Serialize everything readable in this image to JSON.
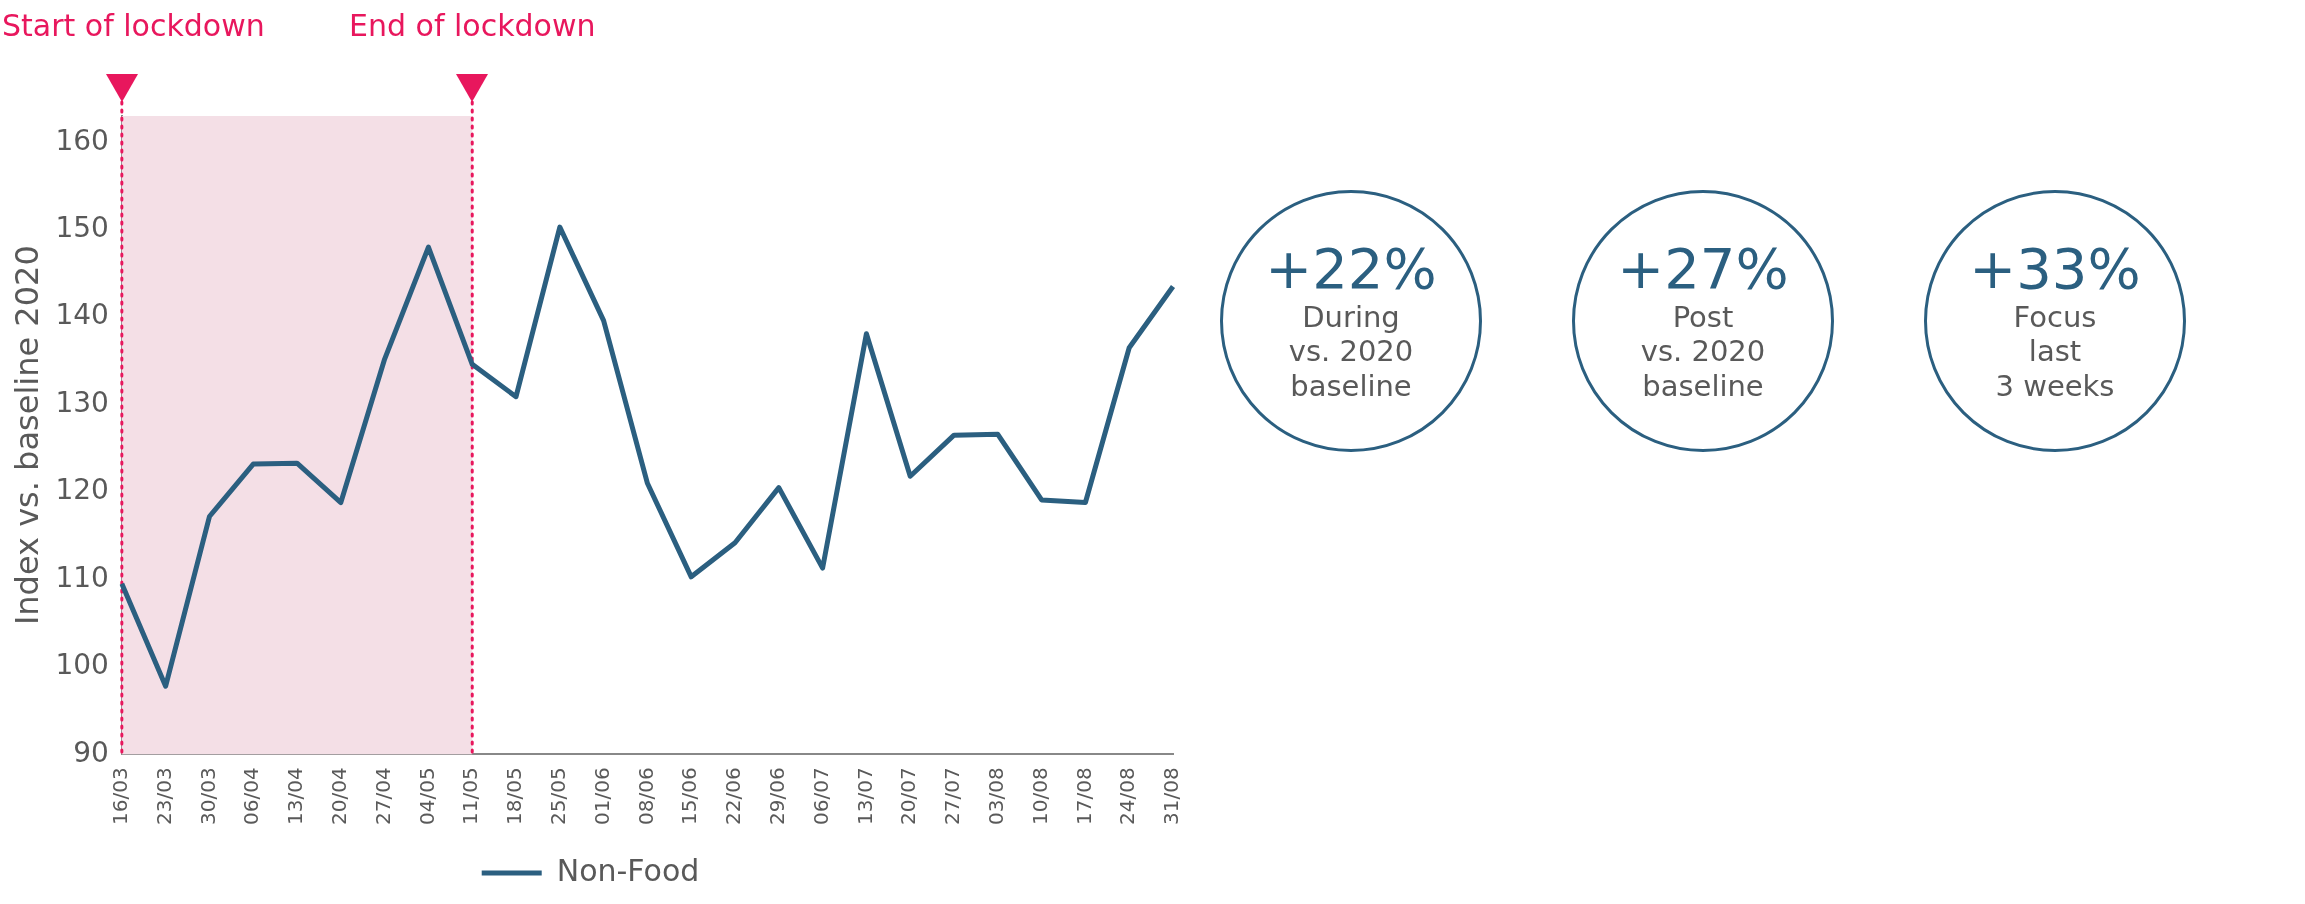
{
  "chart_data": [
    {
      "type": "line",
      "ylabel": "Index vs. baseline 2020",
      "categories": [
        "16/03",
        "23/03",
        "30/03",
        "06/04",
        "13/04",
        "20/04",
        "27/04",
        "04/05",
        "11/05",
        "18/05",
        "25/05",
        "01/06",
        "08/06",
        "15/06",
        "22/06",
        "29/06",
        "06/07",
        "13/07",
        "20/07",
        "27/07",
        "03/08",
        "10/08",
        "17/08",
        "24/08",
        "31/08"
      ],
      "series": [
        {
          "name": "Non-Food",
          "color": "#2b5f80",
          "values": [
            109.5,
            97.8,
            117.2,
            123.2,
            123.3,
            118.8,
            135.2,
            148,
            134.6,
            130.9,
            150.3,
            139.6,
            121,
            110.3,
            114.2,
            120.5,
            111.3,
            138.1,
            121.8,
            126.5,
            126.6,
            119.1,
            118.8,
            136.5,
            143.5
          ]
        }
      ],
      "ylim": [
        90,
        163
      ],
      "yticks": [
        90,
        100,
        110,
        120,
        130,
        140,
        150,
        160
      ],
      "grid": false,
      "legend": "bottom",
      "marker": "none",
      "line_style": "solid",
      "ref_lines": [
        {
          "axis": "x",
          "value": "16/03",
          "label": "Start of lockdown",
          "color": "#e8175d",
          "line_style": "dotted"
        },
        {
          "axis": "x",
          "value": "11/05",
          "label": "End of lockdown",
          "color": "#e8175d",
          "line_style": "dotted"
        }
      ],
      "bands": [
        {
          "axis": "x",
          "from": "16/03",
          "to": "11/05",
          "color": "#f4dfe6"
        }
      ]
    },
    {
      "type": "other",
      "annotations": [
        "+22%",
        "During\nvs. 2020\nbaseline",
        "+27%",
        "Post\nvs. 2020\nbaseline",
        "+33%",
        "Focus\nlast\n3 weeks"
      ]
    }
  ]
}
